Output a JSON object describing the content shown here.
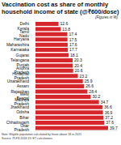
{
  "chart_data": {
    "type": "bar",
    "orientation": "horizontal",
    "title": "Vaccination cost as share of monthly household income of state (@₹600/dose)",
    "subtitle": "(Figures in %)",
    "notes": [
      "Note: Eligible population calculated by those above 18 in 2021",
      "Source: PLFS 2018-19; ET calculations"
    ],
    "categories": [
      "Delhi",
      "Kerala",
      "Tamil Nadu",
      "Haryana",
      "Maharashtra",
      "Karnataka",
      "Gujarat",
      "Telangana",
      "Punjab",
      "Andhra Pradesh",
      "Himachal Pradesh",
      "Uttarakhand",
      "Assam",
      "Rajasthan",
      "West Bengal",
      "Madhya Pradesh",
      "Jharkhand",
      "Odisha",
      "Bihar",
      "Chhattisgarh",
      "Uttar Pradesh"
    ],
    "values": [
      12.6,
      13.8,
      17.4,
      17.5,
      17.6,
      17.7,
      18.1,
      20.3,
      20.4,
      20.6,
      23.2,
      25.9,
      26.6,
      28.4,
      30.2,
      34.7,
      36.6,
      36.9,
      37.2,
      37.6,
      39.7
    ],
    "color": "#d7262b",
    "xlim": [
      0,
      45
    ],
    "tick_labels": "y",
    "data_labels": true
  }
}
